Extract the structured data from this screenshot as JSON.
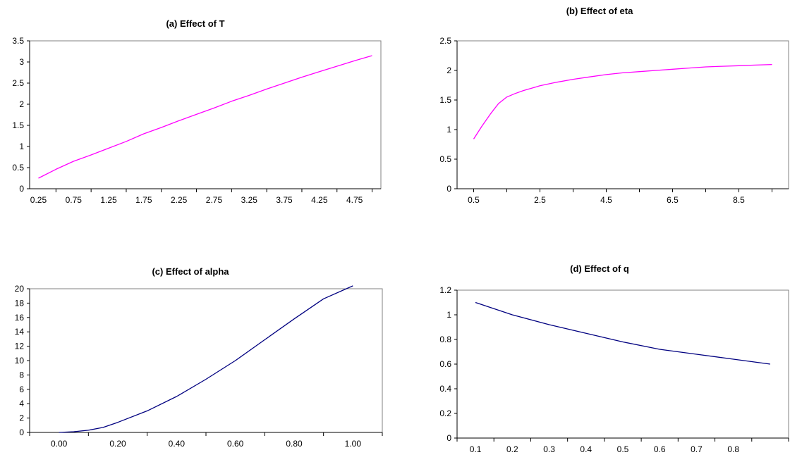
{
  "chart_data": [
    {
      "type": "line",
      "title": "(a) Effect of T",
      "xlabel": "",
      "ylabel": "",
      "ylim": [
        0,
        3.5
      ],
      "ytick_labels": [
        "0",
        "0.5",
        "1",
        "1.5",
        "2",
        "2.5",
        "3",
        "3.5"
      ],
      "xlim": [
        0.125,
        5.125
      ],
      "xtick_labels": [
        "0.25",
        "0.75",
        "1.25",
        "1.75",
        "2.25",
        "2.75",
        "3.25",
        "3.75",
        "4.25",
        "4.75"
      ],
      "grid": false,
      "legend": "none",
      "series_color": "#ff00ff",
      "series": [
        {
          "x": [
            0.25,
            0.5,
            0.75,
            1.0,
            1.25,
            1.5,
            1.75,
            2.0,
            2.25,
            2.5,
            2.75,
            3.0,
            3.25,
            3.5,
            3.75,
            4.0,
            4.25,
            4.5,
            4.75,
            5.0
          ],
          "values": [
            0.25,
            0.46,
            0.65,
            0.8,
            0.96,
            1.12,
            1.3,
            1.45,
            1.61,
            1.76,
            1.91,
            2.07,
            2.21,
            2.36,
            2.5,
            2.64,
            2.77,
            2.9,
            3.03,
            3.15
          ]
        }
      ]
    },
    {
      "type": "line",
      "title": "(b) Effect of eta",
      "xlabel": "",
      "ylabel": "",
      "ylim": [
        0,
        2.5
      ],
      "ytick_labels": [
        "0",
        "0.5",
        "1",
        "1.5",
        "2",
        "2.5"
      ],
      "xlim": [
        0.0,
        10.0
      ],
      "xtick_labels": [
        "0.5",
        "2.5",
        "4.5",
        "6.5",
        "8.5"
      ],
      "grid": false,
      "legend": "none",
      "series_color": "#ff00ff",
      "series": [
        {
          "x": [
            0.5,
            0.75,
            1.0,
            1.25,
            1.5,
            1.75,
            2.0,
            2.5,
            3.0,
            3.5,
            4.0,
            4.5,
            5.0,
            5.5,
            6.0,
            6.5,
            7.0,
            7.5,
            8.0,
            8.5,
            9.0,
            9.5
          ],
          "values": [
            0.84,
            1.06,
            1.26,
            1.44,
            1.55,
            1.61,
            1.66,
            1.74,
            1.8,
            1.85,
            1.89,
            1.93,
            1.96,
            1.98,
            2.0,
            2.02,
            2.04,
            2.06,
            2.07,
            2.08,
            2.09,
            2.1
          ]
        }
      ]
    },
    {
      "type": "line",
      "title": "(c) Effect of alpha",
      "xlabel": "",
      "ylabel": "",
      "ylim": [
        0,
        20
      ],
      "ytick_labels": [
        "0",
        "2",
        "4",
        "6",
        "8",
        "10",
        "12",
        "14",
        "16",
        "18",
        "20"
      ],
      "xlim": [
        -0.1,
        1.1
      ],
      "xtick_labels": [
        "0.00",
        "0.20",
        "0.40",
        "0.60",
        "0.80",
        "1.00"
      ],
      "grid": false,
      "legend": "none",
      "series_color": "#000080",
      "series": [
        {
          "x": [
            0.0,
            0.05,
            0.1,
            0.15,
            0.2,
            0.3,
            0.4,
            0.5,
            0.6,
            0.7,
            0.8,
            0.9,
            1.0
          ],
          "values": [
            0.0,
            0.1,
            0.3,
            0.7,
            1.4,
            3.0,
            5.0,
            7.4,
            10.0,
            12.9,
            15.8,
            18.6,
            20.4
          ]
        }
      ]
    },
    {
      "type": "line",
      "title": "(d) Effect of q",
      "xlabel": "",
      "ylabel": "",
      "ylim": [
        0,
        1.2
      ],
      "ytick_labels": [
        "0",
        "0.2",
        "0.4",
        "0.6",
        "0.8",
        "1",
        "1.2"
      ],
      "xlim": [
        0.05,
        0.95
      ],
      "xtick_labels": [
        "0.1",
        "0.2",
        "0.3",
        "0.4",
        "0.5",
        "0.6",
        "0.7",
        "0.8"
      ],
      "grid": false,
      "legend": "none",
      "series_color": "#000080",
      "series": [
        {
          "x": [
            0.1,
            0.2,
            0.3,
            0.4,
            0.5,
            0.6,
            0.7,
            0.8,
            0.9
          ],
          "values": [
            1.1,
            1.0,
            0.92,
            0.85,
            0.78,
            0.72,
            0.68,
            0.64,
            0.6
          ]
        }
      ]
    }
  ]
}
